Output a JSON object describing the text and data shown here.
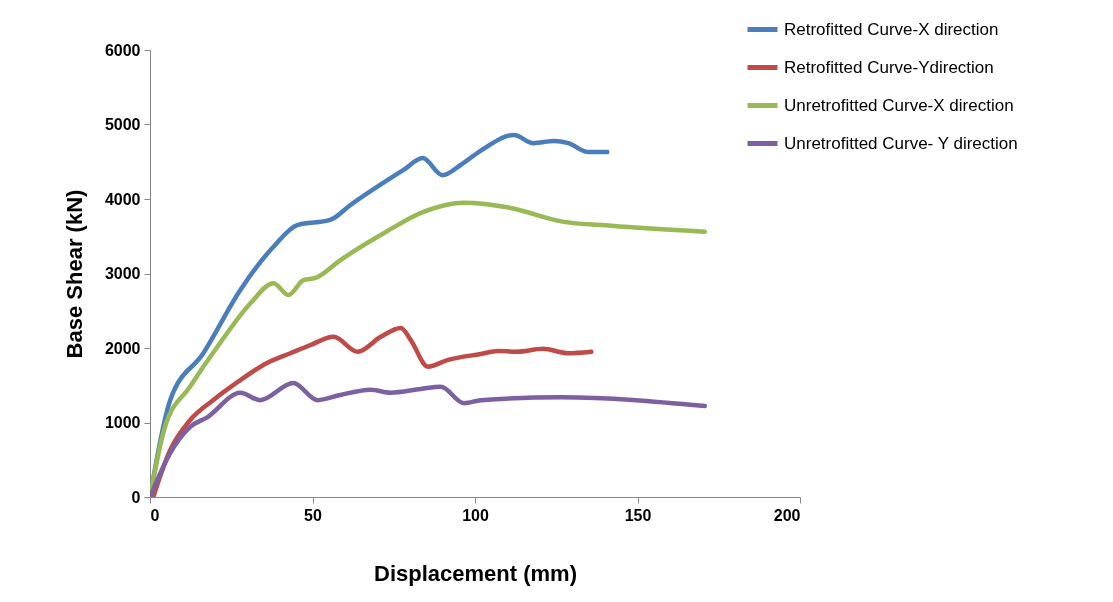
{
  "chart_data": {
    "type": "line",
    "xlabel": "Displacement (mm)",
    "ylabel": "Base Shear (kN)",
    "xlim": [
      0,
      200
    ],
    "xticks": [
      0,
      50,
      100,
      150,
      200
    ],
    "ylim": [
      0,
      6000
    ],
    "yticks": [
      0,
      1000,
      2000,
      3000,
      4000,
      5000,
      6000
    ],
    "grid": false,
    "legend": "top right",
    "series": [
      {
        "name": "Retrofitted Curve-X direction",
        "color": "#4a7ebb",
        "x": [
          0,
          6.2,
          16.4,
          27.8,
          38,
          45.3,
          55.5,
          61.7,
          78,
          83.9,
          90,
          95.7,
          101.8,
          112,
          117.9,
          124.4,
          128.7,
          134.8,
          140.7
        ],
        "values": [
          0,
          1300,
          1930,
          2780,
          3360,
          3650,
          3720,
          3920,
          4390,
          4550,
          4320,
          4460,
          4650,
          4860,
          4750,
          4780,
          4750,
          4630,
          4630
        ]
      },
      {
        "name": "Retrofitted Curve-Ydirection",
        "color": "#be4b48",
        "x": [
          1,
          6.2,
          12.3,
          19.4,
          27.8,
          36,
          43.2,
          49.4,
          56.5,
          63.9,
          71,
          77.2,
          80.2,
          85.5,
          91.7,
          101.8,
          107,
          113,
          120.9,
          128.7,
          135.8
        ],
        "values": [
          0,
          630,
          1030,
          1300,
          1570,
          1800,
          1930,
          2040,
          2150,
          1950,
          2150,
          2270,
          2110,
          1750,
          1840,
          1920,
          1960,
          1950,
          1990,
          1930,
          1950
        ]
      },
      {
        "name": "Unretrofitted Curve-X direction",
        "color": "#98b954",
        "x": [
          0,
          4.6,
          12.3,
          21.6,
          30.9,
          38,
          42.6,
          47.2,
          50.9,
          58.6,
          71.9,
          84.3,
          96.6,
          111,
          126.5,
          141.9,
          170.7
        ],
        "values": [
          0,
          940,
          1480,
          2070,
          2600,
          2870,
          2710,
          2910,
          2940,
          3180,
          3540,
          3830,
          3950,
          3880,
          3700,
          3640,
          3560
        ]
      },
      {
        "name": "Unretrofitted Curve- Y direction",
        "color": "#7d60a0",
        "x": [
          0,
          6.2,
          12.3,
          17.6,
          27.8,
          33.9,
          44.1,
          51.5,
          58.6,
          67.9,
          74,
          83.3,
          89.5,
          96.6,
          101.8,
          126.5,
          170.7
        ],
        "values": [
          0,
          590,
          940,
          1070,
          1400,
          1300,
          1530,
          1300,
          1370,
          1440,
          1400,
          1450,
          1480,
          1260,
          1300,
          1340,
          1220
        ]
      }
    ]
  }
}
